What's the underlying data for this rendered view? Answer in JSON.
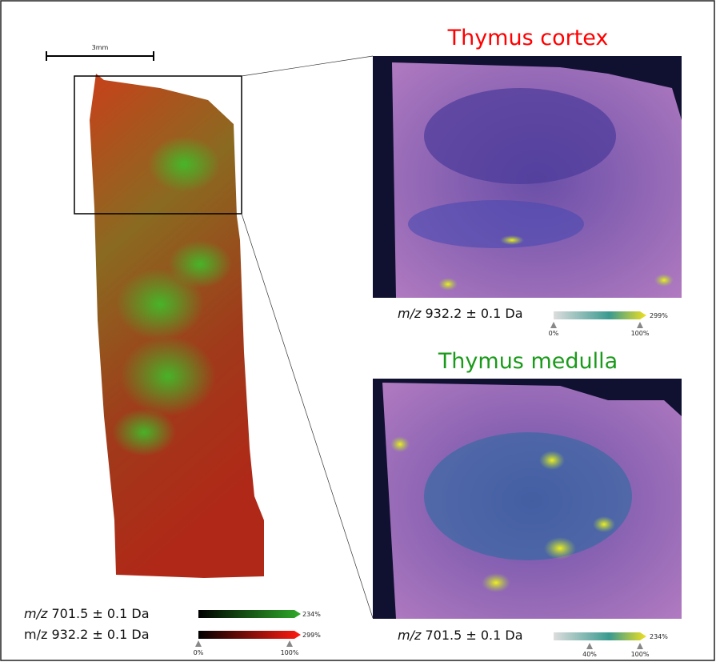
{
  "scale_bar": {
    "label": "3mm"
  },
  "overview_legend": [
    {
      "mz": "m/z",
      "mass": "701.5 ± 0.1 Da",
      "max": "234%"
    },
    {
      "mz": "m/z",
      "mass": "932.2 ± 0.1 Da",
      "max": "299%",
      "ticks": [
        "0%",
        "100%"
      ]
    }
  ],
  "panels": [
    {
      "title": "Thymus cortex",
      "legend": {
        "mz": "m/z",
        "mass": "932.2 ± 0.1 Da",
        "max": "299%",
        "ticks": [
          "0%",
          "100%"
        ]
      }
    },
    {
      "title": "Thymus medulla",
      "legend": {
        "mz": "m/z",
        "mass": "701.5 ± 0.1 Da",
        "max": "234%",
        "ticks": [
          "40%",
          "100%"
        ]
      }
    }
  ]
}
